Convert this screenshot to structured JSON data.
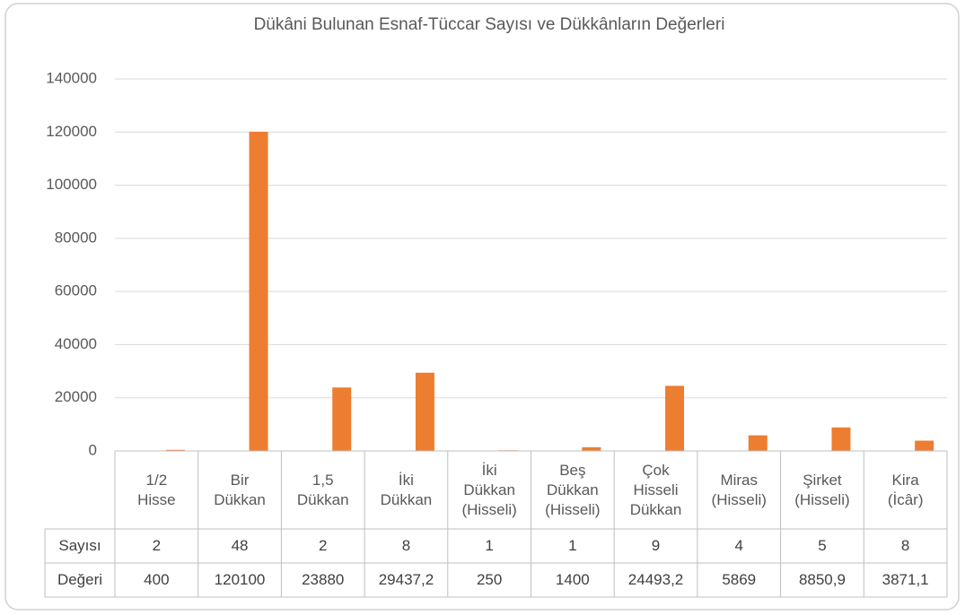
{
  "chart_data": {
    "type": "bar",
    "title": "Dükâni Bulunan Esnaf-Tüccar Sayısı ve Dükkânların Değerleri",
    "categories": [
      "1/2 Hisse",
      "Bir Dükkan",
      "1,5 Dükkan",
      "İki Dükkan",
      "İki Dükkan (Hisseli)",
      "Beş Dükkan (Hisseli)",
      "Çok Hisseli Dükkan",
      "Miras (Hisseli)",
      "Şirket (Hisseli)",
      "Kira (İcâr)"
    ],
    "series": [
      {
        "name": "Sayısı",
        "color": "#4472c4",
        "values": [
          2,
          48,
          2,
          8,
          1,
          1,
          9,
          4,
          5,
          8
        ]
      },
      {
        "name": "Değeri",
        "color": "#ed7d31",
        "values": [
          400,
          120100,
          23880,
          29437.2,
          250,
          1400,
          24493.2,
          5869,
          8850.9,
          3871.1
        ],
        "value_labels": [
          "400",
          "120100",
          "23880",
          "29437,2",
          "250",
          "1400",
          "24493,2",
          "5869",
          "8850,9",
          "3871,1"
        ]
      }
    ],
    "ylim": [
      0,
      140000
    ],
    "yticks": [
      0,
      20000,
      40000,
      60000,
      80000,
      100000,
      120000,
      140000
    ],
    "grid": true
  }
}
